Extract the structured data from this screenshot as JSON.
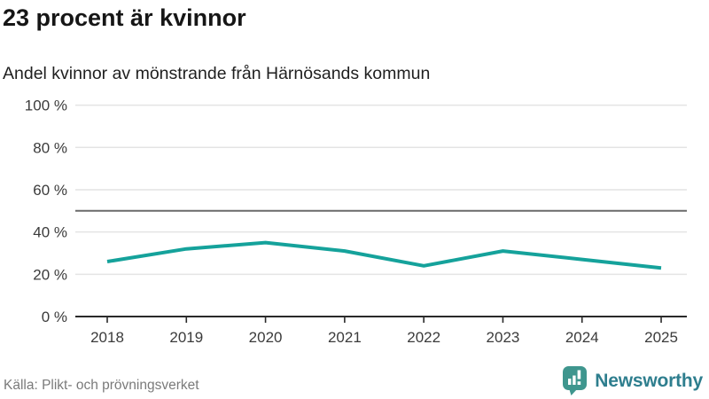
{
  "header": {
    "title": "23 procent är kvinnor",
    "subtitle": "Andel kvinnor av mönstrande från Härnösands kommun"
  },
  "footer": {
    "source": "Källa: Plikt- och prövningsverket",
    "brand": "Newsworthy"
  },
  "chart_data": {
    "type": "line",
    "title": "23 procent är kvinnor",
    "subtitle": "Andel kvinnor av mönstrande från Härnösands kommun",
    "x": [
      2018,
      2019,
      2020,
      2021,
      2022,
      2023,
      2024,
      2025
    ],
    "series": [
      {
        "name": "Andel kvinnor av mönstrande",
        "values": [
          26,
          32,
          35,
          31,
          24,
          31,
          27,
          23
        ]
      }
    ],
    "xlabel": "",
    "ylabel": "",
    "ylim": [
      0,
      100
    ],
    "yticks": [
      0,
      20,
      40,
      60,
      80,
      100
    ],
    "ytick_suffix": " %",
    "reference_line": 50,
    "grid": true,
    "legend": "none",
    "colors": {
      "line": "#15a29b",
      "grid": "#e4e4e4",
      "reference": "#6a6a6a",
      "axis": "#2a2a2a",
      "tick_text": "#3b3b3b"
    }
  }
}
